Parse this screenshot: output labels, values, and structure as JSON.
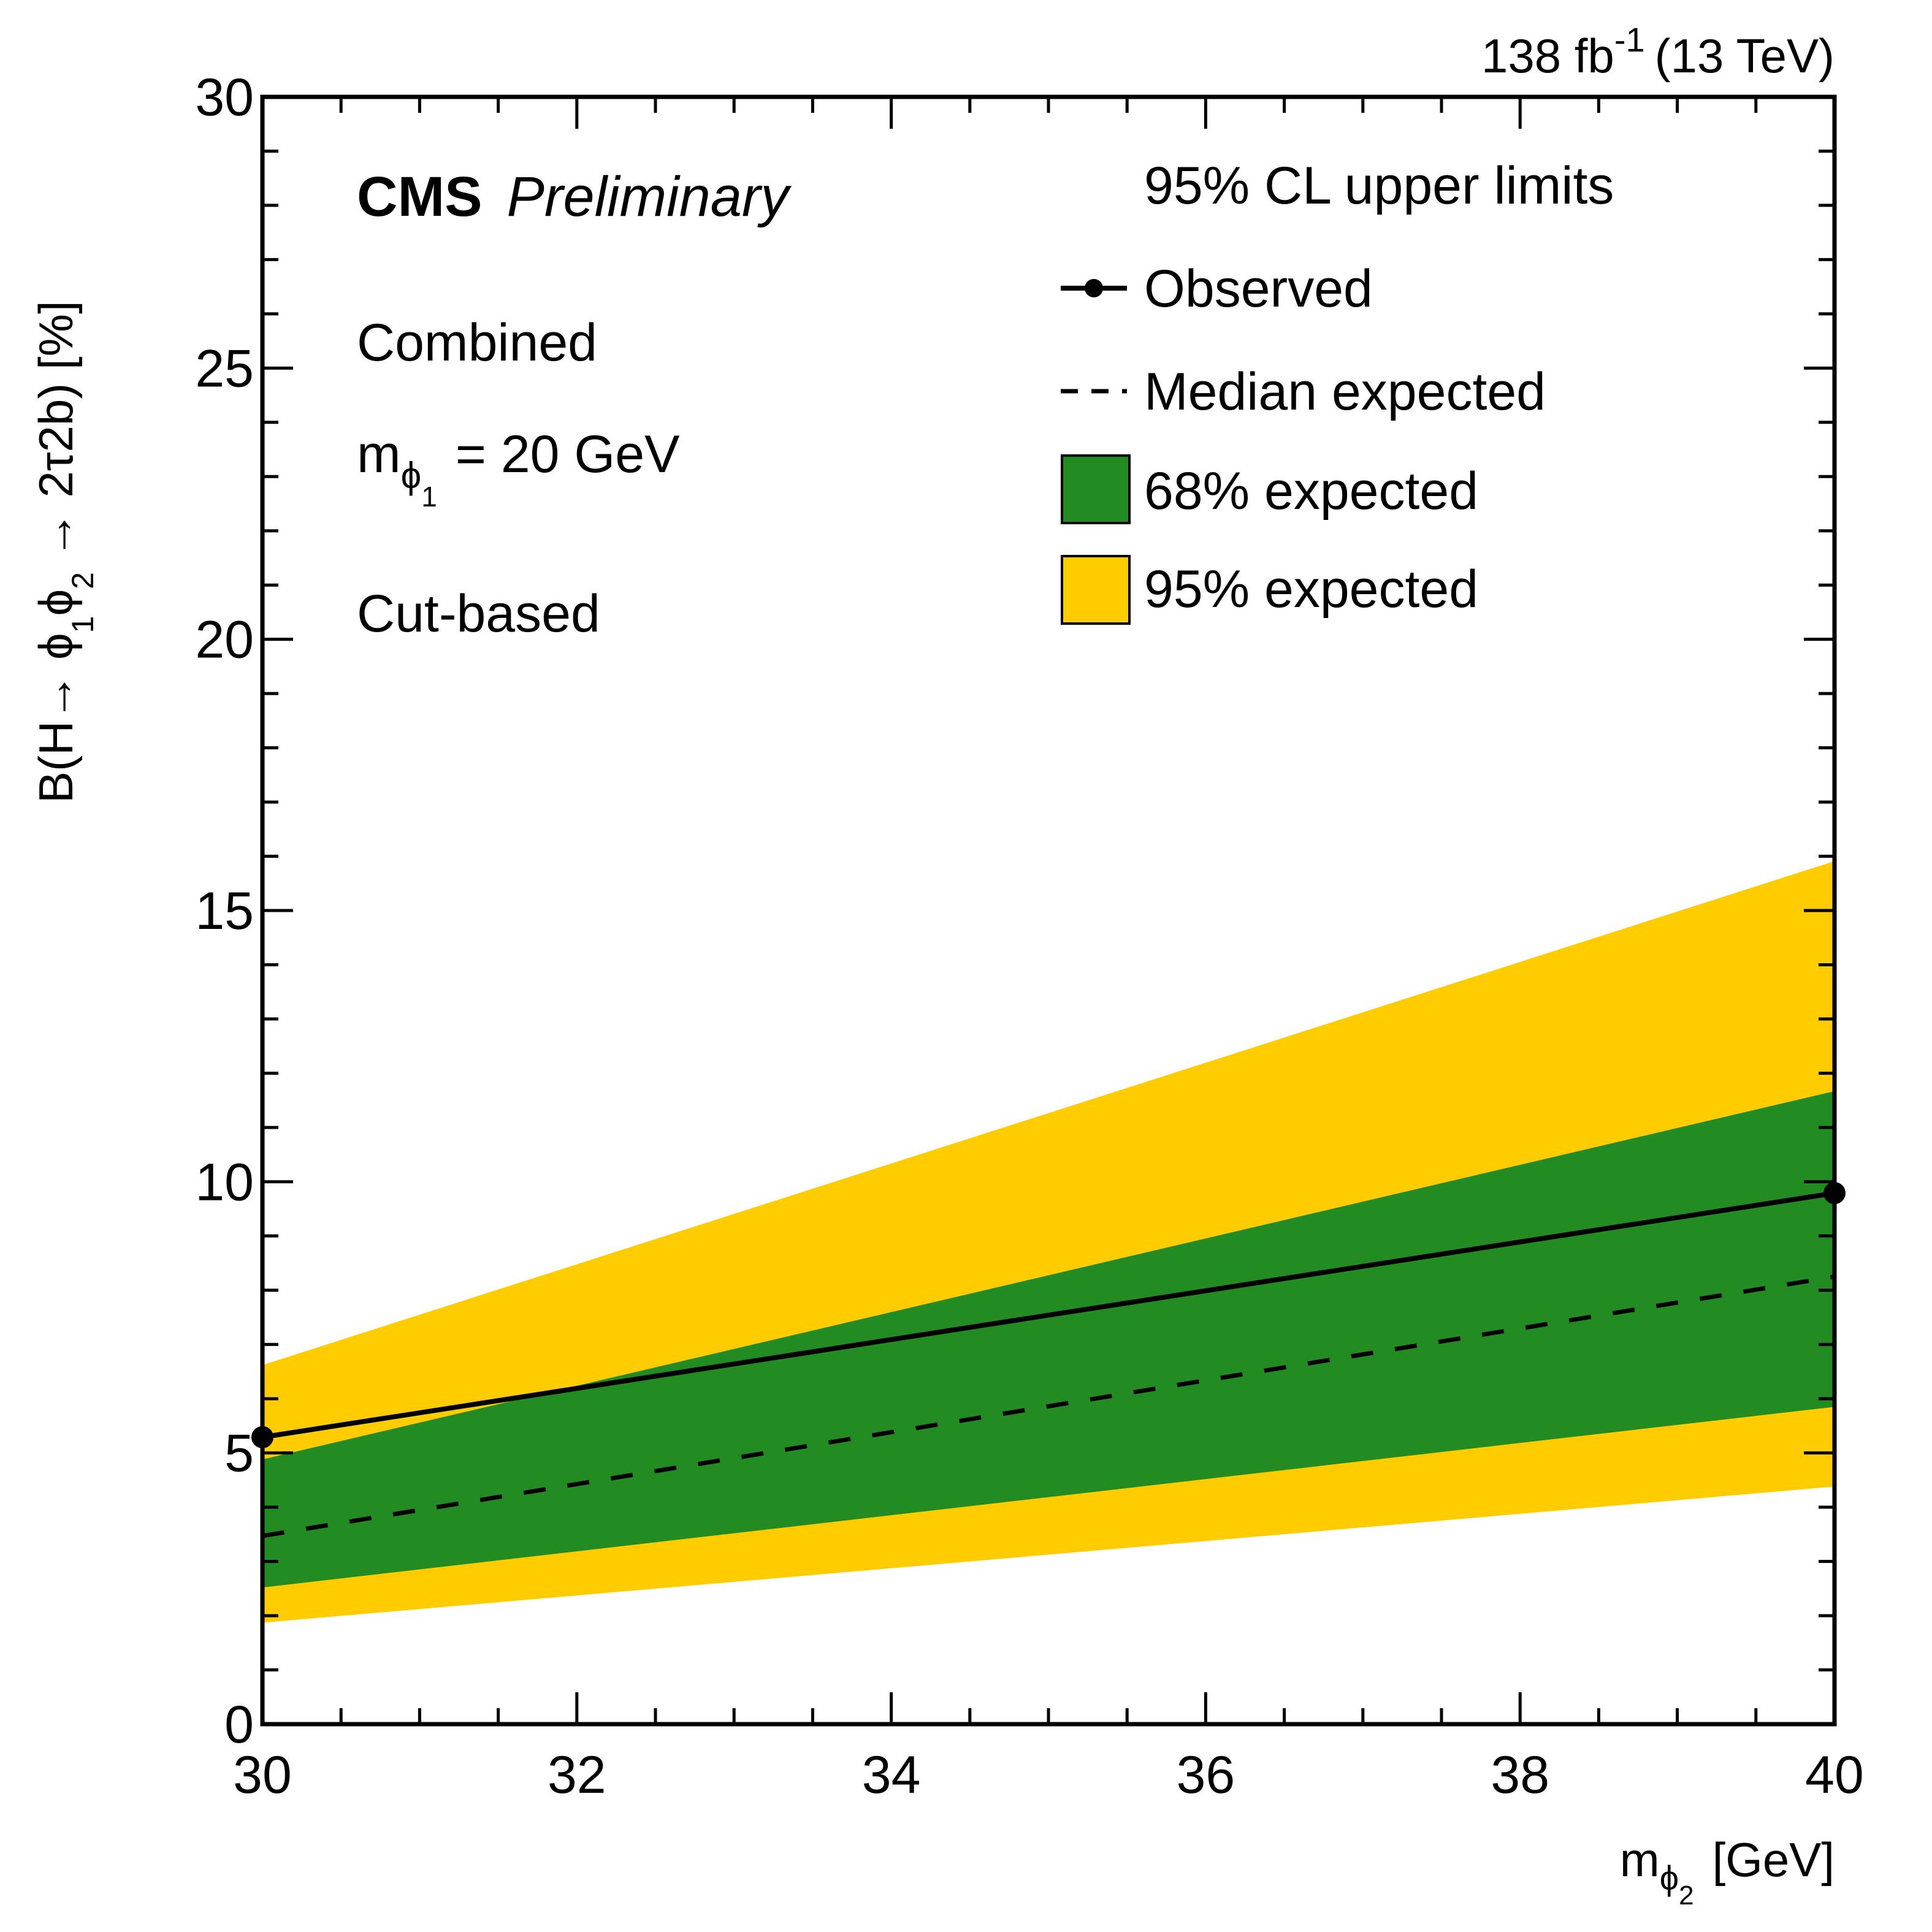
{
  "header": {
    "lumi_label": "138 fb",
    "lumi_exponent": "-1",
    "energy_label": "(13 TeV)"
  },
  "annotations": {
    "experiment": "CMS",
    "status": "Preliminary",
    "analysis": "Combined",
    "mass_symbol": "m",
    "mass_sub_particle": "ϕ",
    "mass_sub_index": "1",
    "mass_value": " = 20 GeV",
    "method": "Cut-based"
  },
  "legend": {
    "title": "95% CL upper limits",
    "entries": [
      {
        "label": "Observed",
        "style": "line-marker"
      },
      {
        "label": "Median expected",
        "style": "dashed"
      },
      {
        "label": "68% expected",
        "style": "box-green"
      },
      {
        "label": "95% expected",
        "style": "box-yellow"
      }
    ]
  },
  "colors": {
    "band68": "#228B22",
    "band95": "#FFCC00",
    "line": "#000000"
  },
  "chart_data": {
    "type": "line",
    "title": "",
    "xlabel": "m_ϕ2 [GeV]",
    "ylabel": "B(H→ ϕ1ϕ2 → 2τ2b) [%]",
    "xlim": [
      30,
      40
    ],
    "ylim": [
      0,
      30
    ],
    "x_major_ticks": [
      30,
      32,
      34,
      36,
      38,
      40
    ],
    "x_minor_step": 0.5,
    "y_major_ticks": [
      0,
      5,
      10,
      15,
      20,
      25,
      30
    ],
    "y_minor_step": 1,
    "x_tick_labels": [
      "30",
      "32",
      "34",
      "36",
      "38",
      "40"
    ],
    "y_tick_labels": [
      "0",
      "5",
      "10",
      "15",
      "20",
      "25",
      "30"
    ],
    "grid": false,
    "legend_position": "top-right",
    "x": [
      30,
      40
    ],
    "series": [
      {
        "name": "Observed",
        "values": [
          5.29,
          9.79
        ],
        "style": "solid-with-markers"
      },
      {
        "name": "Median expected",
        "values": [
          3.47,
          8.25
        ],
        "style": "dashed"
      }
    ],
    "bands": [
      {
        "name": "95% expected",
        "low": [
          1.87,
          4.38
        ],
        "high": [
          6.62,
          15.91
        ]
      },
      {
        "name": "68% expected",
        "low": [
          2.52,
          5.85
        ],
        "high": [
          4.88,
          11.67
        ]
      }
    ]
  }
}
